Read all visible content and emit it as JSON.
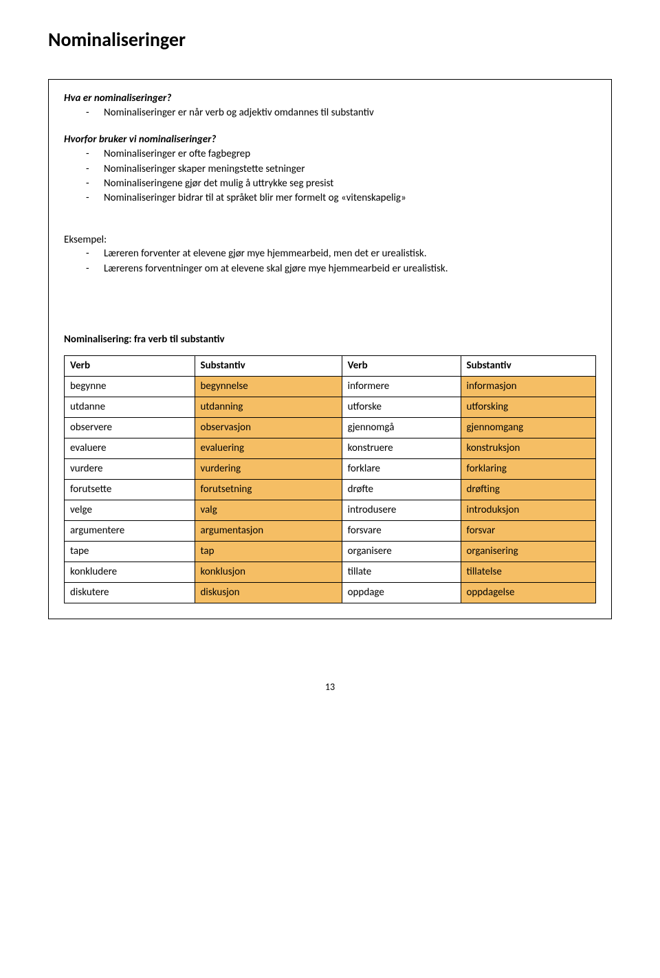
{
  "title": "Nominaliseringer",
  "section1": {
    "heading": "Hva er nominaliseringer?",
    "items": [
      "Nominaliseringer er når verb og adjektiv omdannes til substantiv"
    ]
  },
  "section2": {
    "heading": "Hvorfor bruker vi nominaliseringer?",
    "items": [
      "Nominaliseringer er ofte fagbegrep",
      "Nominaliseringer skaper meningstette setninger",
      "Nominaliseringene gjør det mulig å uttrykke seg presist",
      "Nominaliseringer bidrar til at språket blir mer formelt og «vitenskapelig»"
    ]
  },
  "example": {
    "label": "Eksempel:",
    "items": [
      "Læreren forventer at elevene gjør mye hjemmearbeid, men det er urealistisk.",
      "Lærerens forventninger om at elevene skal gjøre mye hjemmearbeid er urealistisk."
    ]
  },
  "tableSection": {
    "title": "Nominalisering: fra verb til substantiv",
    "headers": [
      "Verb",
      "Substantiv",
      "Verb",
      "Substantiv"
    ],
    "highlight_color": "#f5be64",
    "border_color": "#000000",
    "rows": [
      [
        "begynne",
        "begynnelse",
        "informere",
        "informasjon"
      ],
      [
        "utdanne",
        "utdanning",
        "utforske",
        "utforsking"
      ],
      [
        "observere",
        "observasjon",
        "gjennomgå",
        "gjennomgang"
      ],
      [
        "evaluere",
        "evaluering",
        "konstruere",
        "konstruksjon"
      ],
      [
        "vurdere",
        "vurdering",
        "forklare",
        "forklaring"
      ],
      [
        "forutsette",
        "forutsetning",
        "drøfte",
        "drøfting"
      ],
      [
        "velge",
        "valg",
        "introdusere",
        "introduksjon"
      ],
      [
        "argumentere",
        "argumentasjon",
        "forsvare",
        "forsvar"
      ],
      [
        "tape",
        "tap",
        "organisere",
        "organisering"
      ],
      [
        "konkludere",
        "konklusjon",
        "tillate",
        "tillatelse"
      ],
      [
        "diskutere",
        "diskusjon",
        "oppdage",
        "oppdagelse"
      ]
    ]
  },
  "pageNumber": "13"
}
